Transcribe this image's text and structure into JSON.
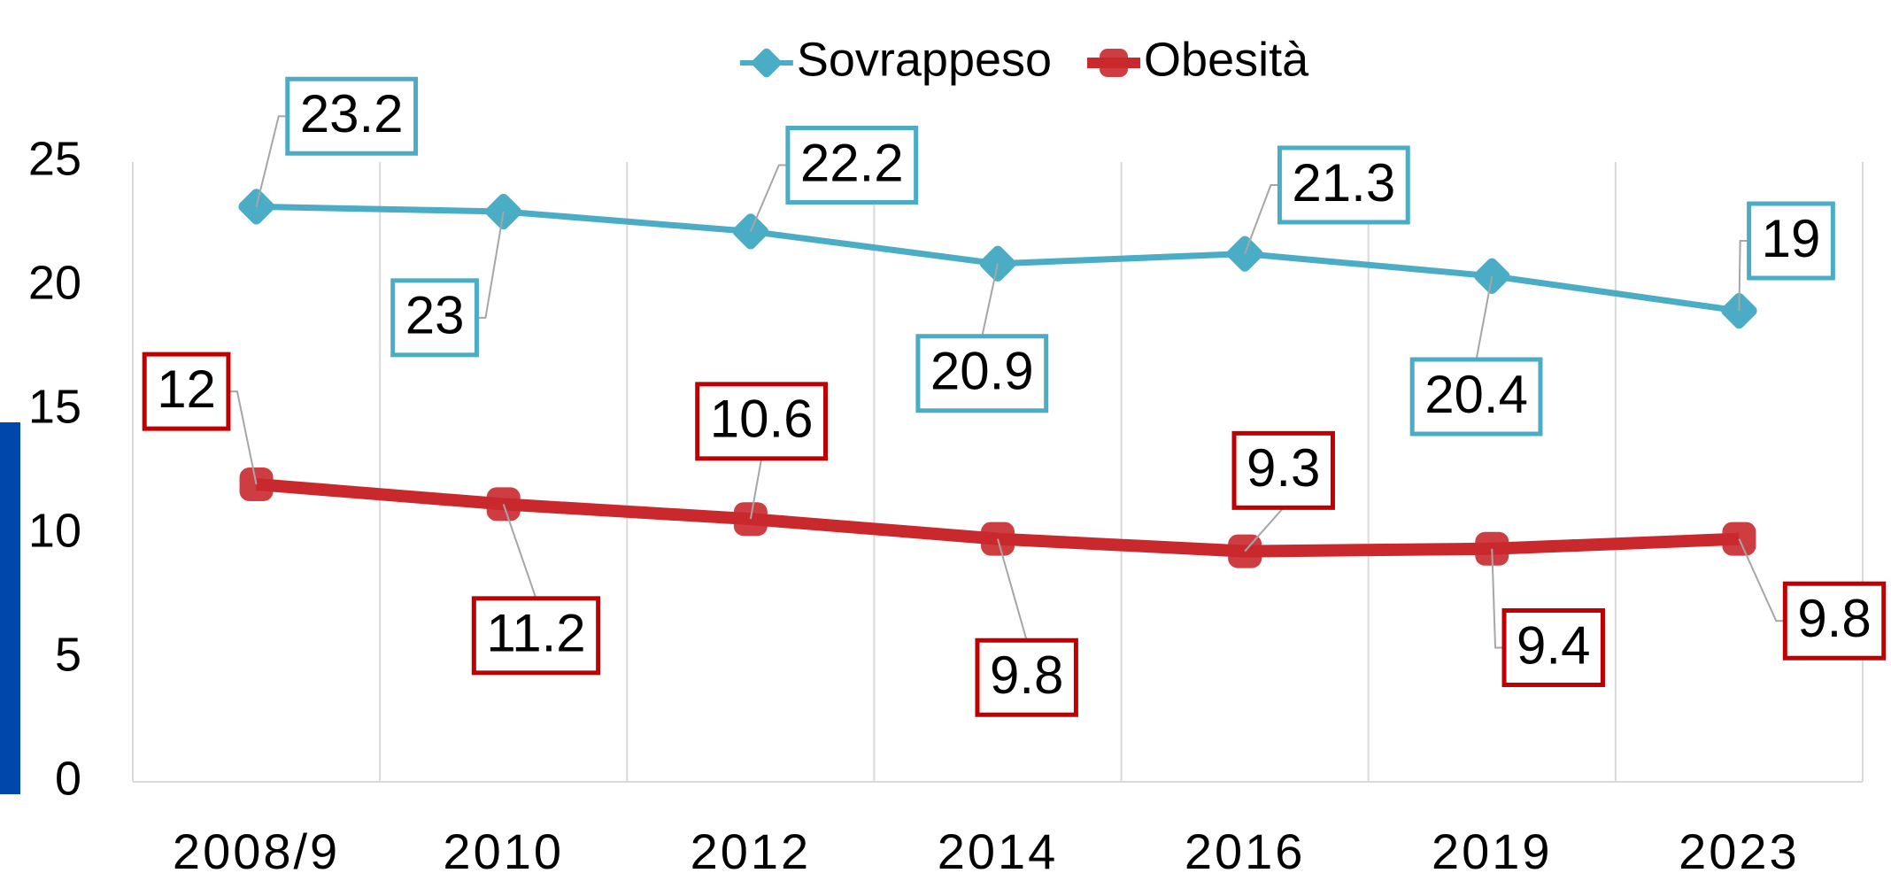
{
  "chart_data": {
    "type": "line",
    "categories": [
      "2008/9",
      "2010",
      "2012",
      "2014",
      "2016",
      "2019",
      "2023"
    ],
    "series": [
      {
        "name": "Sovrappeso",
        "color": "#4bacc6",
        "values": [
          23.2,
          23,
          22.2,
          20.9,
          21.3,
          20.4,
          19
        ]
      },
      {
        "name": "Obesità",
        "color": "#c9282d",
        "values": [
          12,
          11.2,
          10.6,
          9.8,
          9.3,
          9.4,
          9.8
        ]
      }
    ],
    "ylim": [
      0,
      25
    ],
    "yticks": [
      0,
      5,
      10,
      15,
      20,
      25
    ],
    "grid": true,
    "legend": "top"
  }
}
